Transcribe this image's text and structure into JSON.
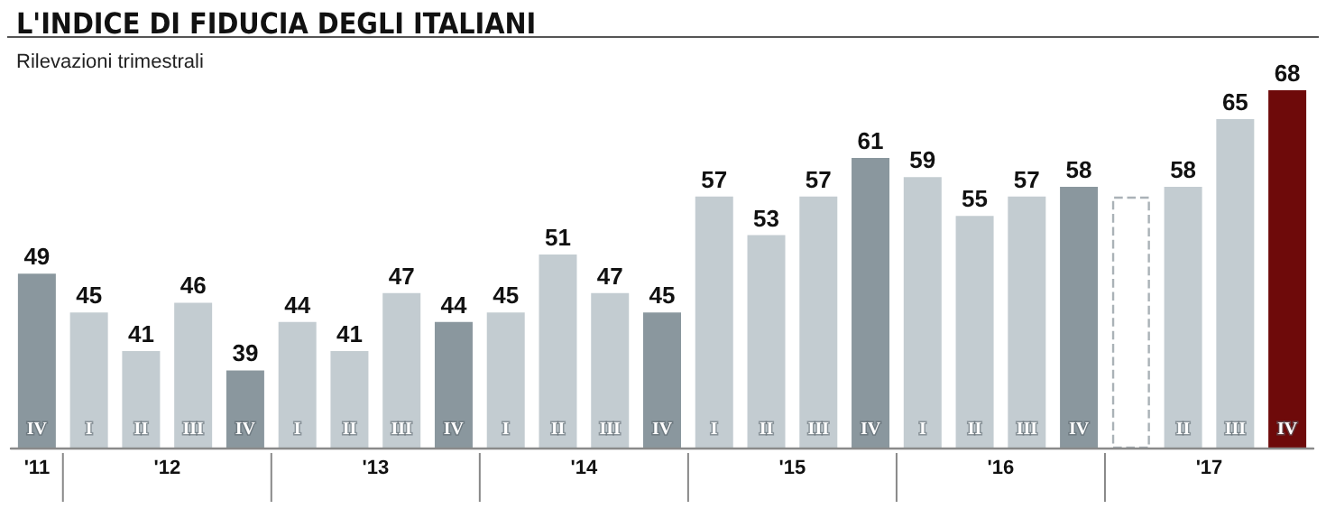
{
  "chart_data": {
    "type": "bar",
    "title": "L'INDICE DI FIDUCIA DEGLI ITALIANI",
    "subtitle": "Rilevazioni trimestrali",
    "categories": [
      "IV",
      "I",
      "II",
      "III",
      "IV",
      "I",
      "II",
      "III",
      "IV",
      "I",
      "II",
      "III",
      "IV",
      "I",
      "II",
      "III",
      "IV",
      "I",
      "II",
      "III",
      "IV",
      null,
      "II",
      "III",
      "IV"
    ],
    "series": [
      {
        "values": [
          49,
          45,
          41,
          46,
          39,
          44,
          41,
          47,
          44,
          45,
          51,
          47,
          45,
          57,
          53,
          57,
          61,
          59,
          55,
          57,
          58,
          null,
          58,
          65,
          68
        ],
        "value_labels": [
          "49",
          "45",
          "41",
          "46",
          "39",
          "44",
          "41",
          "47",
          "44",
          "45",
          "51",
          "47",
          "45",
          "57",
          "53",
          "57",
          "61",
          "59",
          "55",
          "57",
          "58",
          null,
          "58",
          "65",
          "68"
        ],
        "colors": [
          "#8a979e",
          "#c3ccd1",
          "#c3ccd1",
          "#c3ccd1",
          "#8a979e",
          "#c3ccd1",
          "#c3ccd1",
          "#c3ccd1",
          "#8a979e",
          "#c3ccd1",
          "#c3ccd1",
          "#c3ccd1",
          "#8a979e",
          "#c3ccd1",
          "#c3ccd1",
          "#c3ccd1",
          "#8a979e",
          "#c3ccd1",
          "#c3ccd1",
          "#c3ccd1",
          "#8a979e",
          "#ffffff",
          "#c3ccd1",
          "#c3ccd1",
          "#6e0a0a"
        ]
      },
      {
        "values": [
          null,
          null,
          null,
          null,
          null,
          null,
          null,
          null,
          null,
          null,
          null,
          null,
          null,
          null,
          null,
          null,
          null,
          null,
          null,
          null,
          null,
          57,
          null,
          null,
          null
        ],
        "color": "#ffffff",
        "line_style": "dashed"
      }
    ],
    "annotations": [
      "'11",
      "'12",
      "'13",
      "'14",
      "'15",
      "'16",
      "'17"
    ],
    "ylim": [
      31,
      68
    ],
    "tick_labels": "x",
    "grid": false
  }
}
